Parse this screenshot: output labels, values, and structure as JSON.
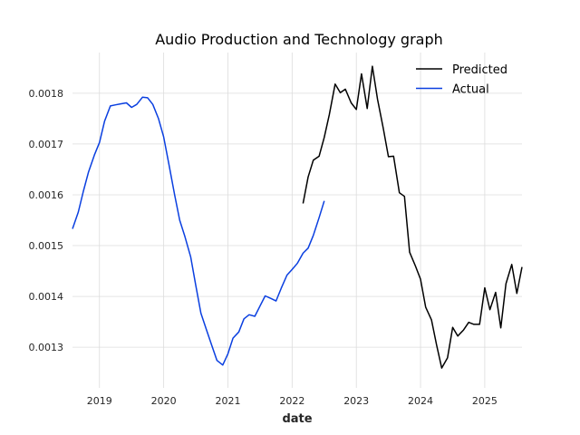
{
  "chart_data": {
    "type": "line",
    "title": "Audio Production and Technology graph",
    "xlabel": "date",
    "ylabel": "",
    "xlim": [
      2018.58,
      2025.58
    ],
    "ylim": [
      0.00122,
      0.00188
    ],
    "x_ticks": [
      {
        "value": 2019,
        "label": "2019"
      },
      {
        "value": 2020,
        "label": "2020"
      },
      {
        "value": 2021,
        "label": "2021"
      },
      {
        "value": 2022,
        "label": "2022"
      },
      {
        "value": 2023,
        "label": "2023"
      },
      {
        "value": 2024,
        "label": "2024"
      },
      {
        "value": 2025,
        "label": "2025"
      }
    ],
    "y_ticks": [
      {
        "value": 0.0013,
        "label": "0.0013"
      },
      {
        "value": 0.0014,
        "label": "0.0014"
      },
      {
        "value": 0.0015,
        "label": "0.0015"
      },
      {
        "value": 0.0016,
        "label": "0.0016"
      },
      {
        "value": 0.0017,
        "label": "0.0017"
      },
      {
        "value": 0.0018,
        "label": "0.0018"
      }
    ],
    "grid": true,
    "legend_position": "top-right",
    "series": [
      {
        "name": "Predicted",
        "color": "#000000",
        "x": [
          2022.17,
          2022.25,
          2022.33,
          2022.42,
          2022.5,
          2022.58,
          2022.67,
          2022.75,
          2022.83,
          2022.92,
          2023.0,
          2023.08,
          2023.17,
          2023.25,
          2023.33,
          2023.42,
          2023.5,
          2023.58,
          2023.67,
          2023.75,
          2023.83,
          2023.92,
          2024.0,
          2024.08,
          2024.17,
          2024.25,
          2024.33,
          2024.42,
          2024.5,
          2024.58,
          2024.67,
          2024.75,
          2024.83,
          2024.92,
          2025.0,
          2025.08,
          2025.17,
          2025.25,
          2025.33,
          2025.42,
          2025.5,
          2025.58
        ],
        "y": [
          0.001583,
          0.001635,
          0.001668,
          0.001676,
          0.001713,
          0.001758,
          0.001818,
          0.001801,
          0.001808,
          0.001781,
          0.001768,
          0.001838,
          0.00177,
          0.001853,
          0.001788,
          0.001731,
          0.001675,
          0.001676,
          0.001604,
          0.001597,
          0.001487,
          0.00146,
          0.001434,
          0.001379,
          0.001354,
          0.001304,
          0.001259,
          0.001279,
          0.001339,
          0.001322,
          0.001334,
          0.001349,
          0.001345,
          0.001345,
          0.001417,
          0.001374,
          0.001408,
          0.001338,
          0.001425,
          0.001463,
          0.001406,
          0.001458
        ]
      },
      {
        "name": "Actual",
        "color": "#0a3fe0",
        "x": [
          2018.58,
          2018.67,
          2018.75,
          2018.83,
          2018.92,
          2019.0,
          2019.08,
          2019.17,
          2019.25,
          2019.33,
          2019.42,
          2019.5,
          2019.58,
          2019.67,
          2019.75,
          2019.83,
          2019.92,
          2020.0,
          2020.08,
          2020.17,
          2020.25,
          2020.33,
          2020.42,
          2020.5,
          2020.58,
          2020.67,
          2020.75,
          2020.83,
          2020.92,
          2021.0,
          2021.08,
          2021.17,
          2021.25,
          2021.33,
          2021.42,
          2021.5,
          2021.58,
          2021.67,
          2021.75,
          2021.83,
          2021.92,
          2022.0,
          2022.08,
          2022.17,
          2022.25,
          2022.33,
          2022.42,
          2022.5
        ],
        "y": [
          0.001533,
          0.001566,
          0.001607,
          0.001645,
          0.001678,
          0.001703,
          0.001745,
          0.001775,
          0.001777,
          0.001779,
          0.001781,
          0.001772,
          0.001778,
          0.001792,
          0.001791,
          0.001778,
          0.00175,
          0.001714,
          0.001661,
          0.0016,
          0.00155,
          0.001518,
          0.001478,
          0.001422,
          0.001367,
          0.001333,
          0.001303,
          0.001274,
          0.001265,
          0.001287,
          0.001318,
          0.00133,
          0.001356,
          0.001364,
          0.001361,
          0.001381,
          0.001401,
          0.001396,
          0.001391,
          0.001416,
          0.001442,
          0.001453,
          0.001465,
          0.001485,
          0.001495,
          0.00152,
          0.001555,
          0.001588
        ]
      }
    ]
  }
}
